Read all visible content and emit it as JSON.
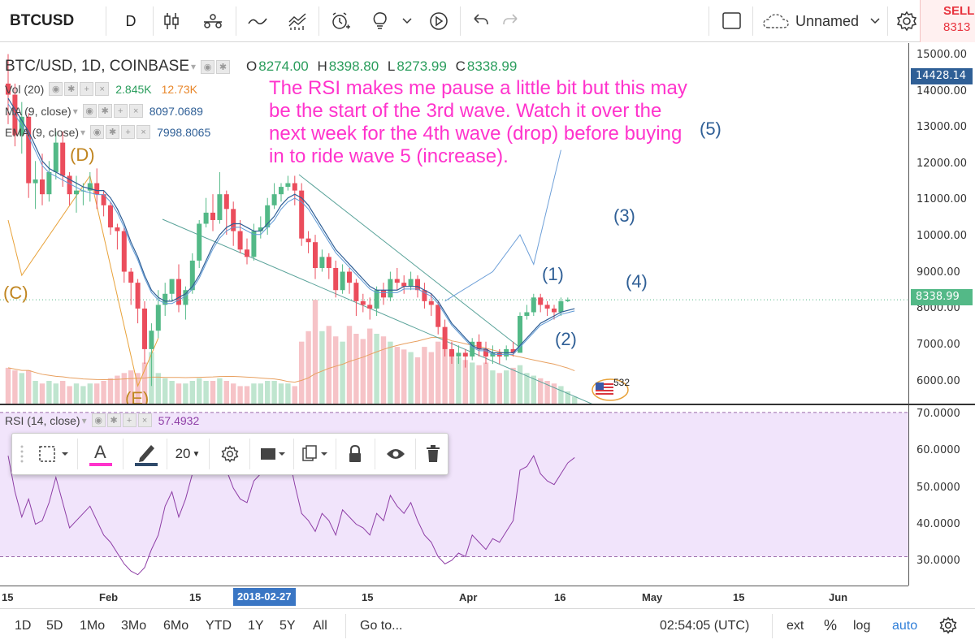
{
  "toolbar": {
    "symbol": "BTCUSD",
    "interval": "D",
    "layout_name": "Unnamed",
    "sell_label": "SELL",
    "sell_price": "8313"
  },
  "legend": {
    "main": "BTC/USD, 1D, COINBASE",
    "open_key": "O",
    "open": "8274.00",
    "high_key": "H",
    "high": "8398.80",
    "low_key": "L",
    "low": "8273.99",
    "close_key": "C",
    "close": "8338.99",
    "vol_label": "Vol (20)",
    "vol_value": "2.845K",
    "vol_ma": "12.73K",
    "ma_label": "MA (9, close)",
    "ma_value": "8097.0689",
    "ema_label": "EMA (9, close)",
    "ema_value": "7998.8065",
    "rsi_label": "RSI (14, close)",
    "rsi_value": "57.4932"
  },
  "annotation": {
    "text": "The RSI makes me pause a little bit but this may\n be the start of the 3rd wave. Watch it over the\nnext week for the 4th wave (drop) before buying\nin to ride wave 5 (increase)."
  },
  "waves": {
    "d": "(D)",
    "c": "(C)",
    "e": "(E)",
    "w1": "(1)",
    "w2": "(2)",
    "w3": "(3)",
    "w4": "(4)",
    "w5": "(5)"
  },
  "price_axis": {
    "labels": [
      "15000.00",
      "14000.00",
      "13000.00",
      "12000.00",
      "11000.00",
      "10000.00",
      "9000.00",
      "8000.00",
      "7000.00",
      "6000.00"
    ],
    "tag_high": "14428.14",
    "tag_last": "8338.99"
  },
  "rsi_axis": {
    "labels": [
      "70.0000",
      "60.0000",
      "50.0000",
      "40.0000",
      "30.0000"
    ]
  },
  "time_axis": {
    "labels": [
      "15",
      "Feb",
      "15",
      "15",
      "Apr",
      "16",
      "May",
      "15",
      "Jun"
    ],
    "highlight": "2018-02-27"
  },
  "draw_toolbar": {
    "font_size": "20"
  },
  "bottombar": {
    "ranges": [
      "1D",
      "5D",
      "1Mo",
      "3Mo",
      "6Mo",
      "YTD",
      "1Y",
      "5Y",
      "All"
    ],
    "goto": "Go to...",
    "clock": "02:54:05 (UTC)",
    "ext": "ext",
    "percent": "%",
    "log": "log",
    "auto": "auto"
  },
  "badge": {
    "text": "532"
  },
  "colors": {
    "up": "#53b987",
    "down": "#eb4d5c",
    "annotation": "#ff33cc",
    "wave_blue": "#2f5f96",
    "wave_orange": "#c0851f",
    "rsi_fill": "#f1e4fb",
    "highlight": "#3a76c4"
  },
  "chart_data": {
    "type": "candlestick",
    "price_ylim": [
      5500,
      15300
    ],
    "rsi_ylim": [
      22,
      72
    ],
    "rsi_band": [
      30,
      70
    ],
    "candles": [
      [
        14200,
        13900,
        15000,
        13100
      ],
      [
        13900,
        12800,
        14200,
        12500
      ],
      [
        12800,
        13300,
        13700,
        12300
      ],
      [
        13300,
        11500,
        13400,
        11100
      ],
      [
        11500,
        11600,
        12100,
        10800
      ],
      [
        11600,
        11200,
        12300,
        10900
      ],
      [
        11200,
        11800,
        12100,
        11000
      ],
      [
        11800,
        12600,
        12900,
        11600
      ],
      [
        12600,
        11700,
        12900,
        11400
      ],
      [
        11700,
        11200,
        11800,
        10900
      ],
      [
        11200,
        11300,
        11700,
        10700
      ],
      [
        11300,
        11300,
        11500,
        10900
      ],
      [
        11300,
        11500,
        11800,
        11000
      ],
      [
        11500,
        11200,
        11900,
        10800
      ],
      [
        11200,
        10900,
        11300,
        10600
      ],
      [
        10900,
        10300,
        11000,
        10100
      ],
      [
        10300,
        10200,
        10400,
        9700
      ],
      [
        10200,
        9100,
        10300,
        8800
      ],
      [
        9100,
        8800,
        9200,
        8200
      ],
      [
        8800,
        8100,
        8900,
        7700
      ],
      [
        8100,
        7000,
        8300,
        6600
      ],
      [
        7000,
        7500,
        7700,
        6000
      ],
      [
        7500,
        8200,
        8600,
        7300
      ],
      [
        8200,
        8500,
        8800,
        7900
      ],
      [
        8500,
        8900,
        8900,
        8300
      ],
      [
        8900,
        8200,
        9300,
        8000
      ],
      [
        8200,
        8600,
        8700,
        7800
      ],
      [
        8600,
        9400,
        9600,
        8500
      ],
      [
        9400,
        10400,
        10500,
        9200
      ],
      [
        10400,
        10700,
        11100,
        10300
      ],
      [
        10700,
        10500,
        11200,
        10200
      ],
      [
        10500,
        11200,
        11800,
        10400
      ],
      [
        11200,
        10800,
        11300,
        10100
      ],
      [
        10800,
        10200,
        11000,
        9800
      ],
      [
        10200,
        9700,
        10500,
        9600
      ],
      [
        9700,
        9500,
        10000,
        9300
      ],
      [
        9500,
        10200,
        10400,
        9400
      ],
      [
        10200,
        10300,
        10600,
        10000
      ],
      [
        10300,
        10900,
        11100,
        10100
      ],
      [
        10900,
        11200,
        11500,
        10800
      ],
      [
        11200,
        11400,
        11500,
        11000
      ],
      [
        11400,
        11500,
        11700,
        11300
      ],
      [
        11500,
        11300,
        11700,
        10900
      ],
      [
        11300,
        10000,
        11500,
        9800
      ],
      [
        10000,
        9900,
        10200,
        9600
      ],
      [
        9900,
        9200,
        10100,
        8900
      ],
      [
        9200,
        9500,
        9700,
        9100
      ],
      [
        9500,
        9200,
        9600,
        8900
      ],
      [
        9200,
        8600,
        9400,
        8400
      ],
      [
        8600,
        9100,
        9300,
        8500
      ],
      [
        9100,
        8800,
        9200,
        8500
      ],
      [
        8800,
        8300,
        8900,
        7900
      ],
      [
        8300,
        8200,
        8500,
        8000
      ],
      [
        8200,
        8100,
        8400,
        7800
      ],
      [
        8100,
        8600,
        8700,
        7900
      ],
      [
        8600,
        8400,
        8800,
        8200
      ],
      [
        8400,
        8900,
        9100,
        8300
      ],
      [
        8900,
        8800,
        9200,
        8600
      ],
      [
        8800,
        8700,
        9000,
        8500
      ],
      [
        8700,
        8900,
        9100,
        8600
      ],
      [
        8900,
        8600,
        9000,
        8400
      ],
      [
        8600,
        8300,
        8800,
        8100
      ],
      [
        8300,
        8200,
        8500,
        7900
      ],
      [
        8200,
        7600,
        8300,
        7400
      ],
      [
        7600,
        7000,
        7800,
        6800
      ],
      [
        7000,
        6800,
        7200,
        6600
      ],
      [
        6800,
        6900,
        7100,
        6600
      ],
      [
        6900,
        6800,
        7000,
        6500
      ],
      [
        6800,
        7200,
        7300,
        6700
      ],
      [
        7200,
        7000,
        7400,
        6800
      ],
      [
        7000,
        6800,
        7200,
        6600
      ],
      [
        6800,
        6900,
        7100,
        6600
      ],
      [
        6900,
        6800,
        7000,
        6600
      ],
      [
        6800,
        7000,
        7100,
        6700
      ],
      [
        7000,
        6900,
        7200,
        6800
      ],
      [
        6900,
        7900,
        8000,
        6900
      ],
      [
        7900,
        8000,
        8200,
        7800
      ],
      [
        8000,
        8400,
        8500,
        7900
      ],
      [
        8400,
        8200,
        8500,
        8000
      ],
      [
        8200,
        8100,
        8300,
        7900
      ],
      [
        8100,
        8000,
        8200,
        7800
      ],
      [
        8000,
        8300,
        8400,
        7900
      ],
      [
        8300,
        8339,
        8399,
        8274
      ]
    ],
    "rsi": [
      58,
      48,
      41,
      46,
      39,
      40,
      45,
      52,
      45,
      38,
      40,
      42,
      44,
      40,
      36,
      34,
      31,
      28,
      26,
      25,
      27,
      32,
      36,
      44,
      48,
      41,
      46,
      53,
      58,
      61,
      57,
      62,
      54,
      49,
      46,
      45,
      51,
      53,
      58,
      61,
      62,
      59,
      50,
      42,
      40,
      37,
      42,
      40,
      36,
      43,
      41,
      39,
      38,
      36,
      42,
      40,
      47,
      44,
      42,
      45,
      40,
      36,
      34,
      30,
      28,
      29,
      31,
      30,
      36,
      34,
      32,
      35,
      34,
      37,
      40,
      54,
      55,
      58,
      53,
      51,
      50,
      53,
      56,
      57.49
    ],
    "volume": [
      14,
      13,
      12,
      13,
      9,
      8,
      9,
      8,
      9,
      7,
      8,
      7,
      8,
      8,
      9,
      10,
      11,
      12,
      13,
      12,
      16,
      20,
      12,
      10,
      9,
      8,
      8,
      9,
      10,
      9,
      9,
      10,
      9,
      8,
      7,
      7,
      8,
      8,
      9,
      9,
      8,
      8,
      7,
      24,
      28,
      40,
      28,
      30,
      26,
      24,
      30,
      27,
      25,
      29,
      27,
      26,
      24,
      22,
      21,
      20,
      18,
      22,
      20,
      24,
      23,
      20,
      18,
      17,
      16,
      15,
      16,
      13,
      12,
      13,
      14,
      15,
      12,
      11,
      10,
      9,
      8,
      7,
      5,
      3
    ],
    "ma_line": [
      13800,
      13500,
      13200,
      12900,
      12500,
      12100,
      11900,
      11800,
      11700,
      11600,
      11500,
      11400,
      11350,
      11300,
      11300,
      11100,
      10800,
      10400,
      9900,
      9500,
      9000,
      8600,
      8400,
      8300,
      8300,
      8400,
      8500,
      8700,
      9000,
      9400,
      9800,
      10100,
      10300,
      10400,
      10400,
      10300,
      10200,
      10200,
      10400,
      10600,
      10900,
      11100,
      11200,
      11100,
      10900,
      10600,
      10300,
      10000,
      9700,
      9500,
      9300,
      9100,
      8900,
      8700,
      8600,
      8600,
      8600,
      8600,
      8700,
      8700,
      8700,
      8600,
      8500,
      8300,
      8000,
      7700,
      7500,
      7300,
      7100,
      7000,
      7000,
      6900,
      6900,
      6900,
      6900,
      7100,
      7300,
      7500,
      7700,
      7800,
      7900,
      8000,
      8050,
      8097
    ],
    "wave_path": [
      [
        64,
        8300
      ],
      [
        71,
        9100
      ],
      [
        75,
        10100
      ],
      [
        77,
        9300
      ],
      [
        81,
        12400
      ]
    ]
  }
}
